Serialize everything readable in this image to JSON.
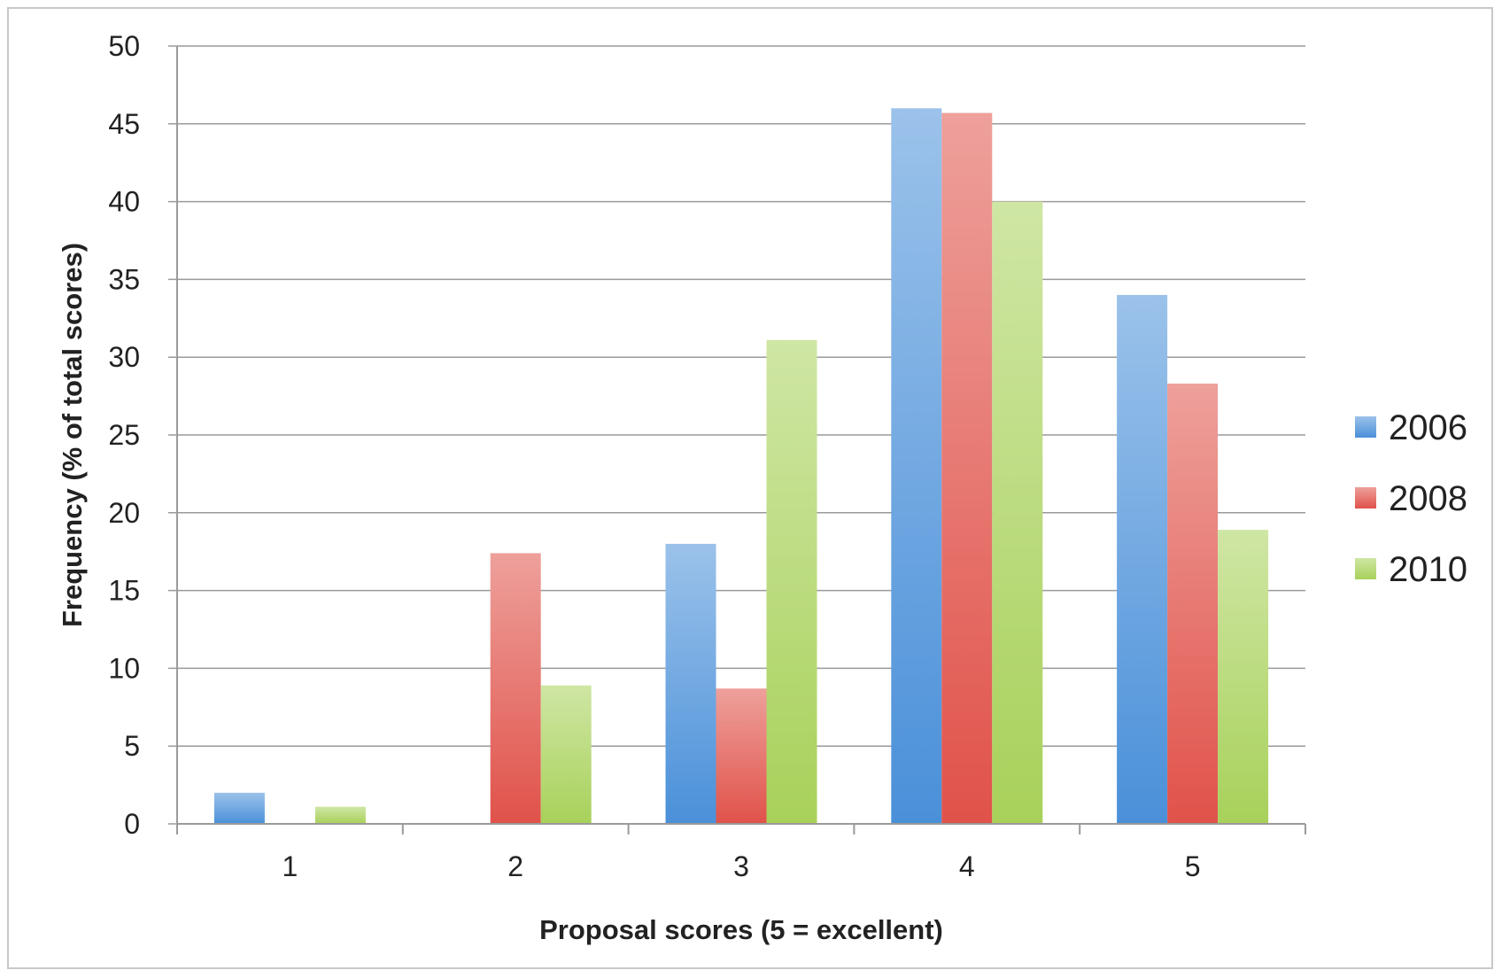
{
  "chart_data": {
    "type": "bar",
    "title": "",
    "xlabel": "Proposal scores (5 = excellent)",
    "ylabel": "Frequency (% of total scores)",
    "categories": [
      "1",
      "2",
      "3",
      "4",
      "5"
    ],
    "ylim": [
      0,
      50
    ],
    "yticks": [
      0,
      5,
      10,
      15,
      20,
      25,
      30,
      35,
      40,
      45,
      50
    ],
    "grid": true,
    "legend_position": "right",
    "series": [
      {
        "name": "2006",
        "color": "#4a90d9",
        "values": [
          2,
          0,
          18,
          46,
          34
        ]
      },
      {
        "name": "2008",
        "color": "#e0524a",
        "values": [
          0,
          17.4,
          8.7,
          45.7,
          28.3
        ]
      },
      {
        "name": "2010",
        "color": "#a8d15a",
        "values": [
          1.1,
          8.9,
          31.1,
          40,
          18.9
        ]
      }
    ]
  }
}
